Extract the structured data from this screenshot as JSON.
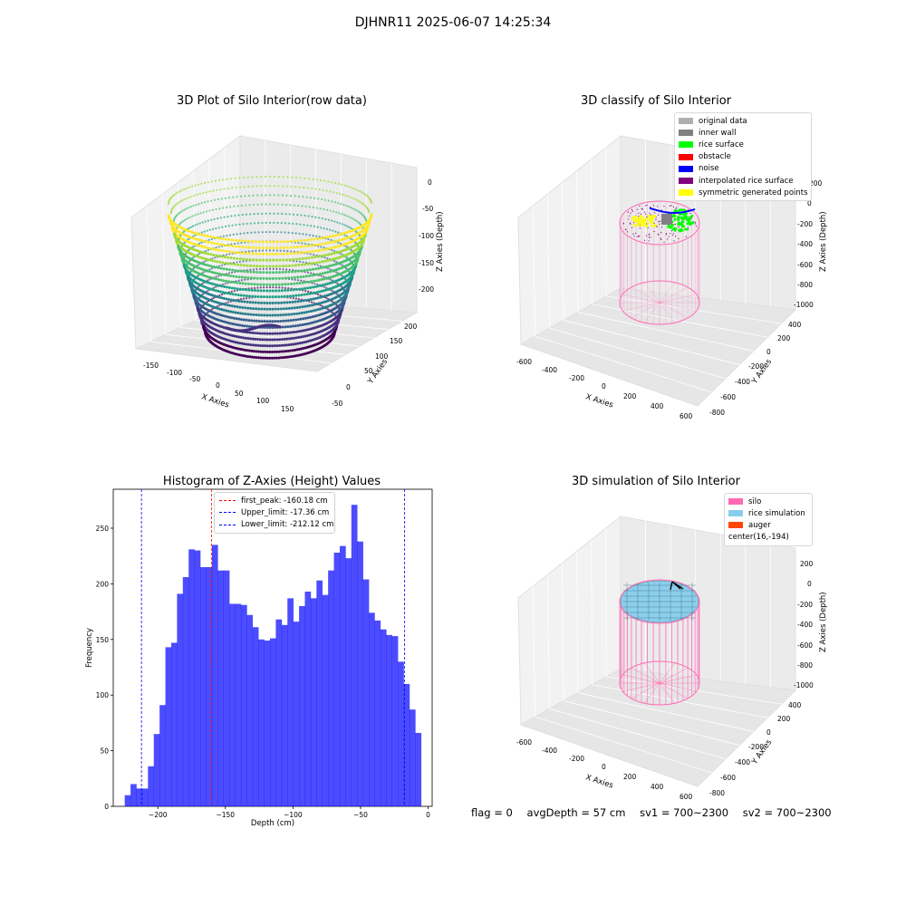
{
  "suptitle": "DJHNR11 2025-06-07 14:25:34",
  "chart_data": [
    {
      "type": "scatter3d",
      "title": "3D Plot of Silo Interior(row data)",
      "xlabel": "X Axies",
      "ylabel": "Y Axies",
      "zlabel": "Z Axies (Depth)",
      "xticks": [
        "-150",
        "-100",
        "-50",
        "0",
        "50",
        "100",
        "150"
      ],
      "yticks": [
        "-50",
        "0",
        "50",
        "100",
        "150",
        "200"
      ],
      "zticks": [
        "0",
        "-50",
        "-100",
        "-150",
        "-200"
      ],
      "zlim": [
        -230,
        0
      ],
      "colormap": "viridis"
    },
    {
      "type": "scatter3d",
      "title": "3D classify of Silo Interior",
      "xlabel": "X Axies",
      "ylabel": "Y Axies",
      "zlabel": "Z Axies (Depth)",
      "xticks": [
        "-600",
        "-400",
        "-200",
        "0",
        "200",
        "400",
        "600"
      ],
      "yticks": [
        "-800",
        "-600",
        "-400",
        "-200",
        "0",
        "200",
        "400"
      ],
      "zticks": [
        "200",
        "0",
        "-200",
        "-400",
        "-600",
        "-800",
        "-1000"
      ],
      "legend": [
        {
          "label": "original data",
          "color": "#b0b0b0"
        },
        {
          "label": "inner wall",
          "color": "#808080"
        },
        {
          "label": "rice surface",
          "color": "#00ff00"
        },
        {
          "label": "obstacle",
          "color": "#ff0000"
        },
        {
          "label": "noise",
          "color": "#0000ff"
        },
        {
          "label": "interpolated rice surface",
          "color": "#800080"
        },
        {
          "label": "symmetric generated points",
          "color": "#ffff00"
        }
      ]
    },
    {
      "type": "bar",
      "title": "Histogram of Z-Axies (Height) Values",
      "xlabel": "Depth (cm)",
      "ylabel": "Frequency",
      "xlim": [
        -233,
        3
      ],
      "ylim": [
        0,
        285
      ],
      "xticks": [
        -200,
        -150,
        -100,
        -50,
        0
      ],
      "yticks": [
        0,
        50,
        100,
        150,
        200,
        250
      ],
      "bin_width": 4.3,
      "bin_start": -224.5,
      "values": [
        10,
        20,
        16,
        16,
        36,
        65,
        91,
        143,
        147,
        191,
        206,
        231,
        230,
        215,
        215,
        235,
        212,
        212,
        182,
        182,
        181,
        172,
        161,
        150,
        149,
        151,
        168,
        163,
        187,
        166,
        180,
        193,
        187,
        203,
        190,
        212,
        228,
        234,
        223,
        271,
        238,
        204,
        174,
        167,
        159,
        154,
        153,
        130,
        110,
        87,
        66
      ],
      "bar_color": "#0000ff",
      "lines": [
        {
          "label": "first_peak: -160.18 cm",
          "x": -160.18,
          "color": "#ff0000"
        },
        {
          "label": "Upper_limit: -17.36 cm",
          "x": -17.36,
          "color": "#0000ff"
        },
        {
          "label": "Lower_limit: -212.12 cm",
          "x": -212.12,
          "color": "#0000ff"
        }
      ]
    },
    {
      "type": "surface3d",
      "title": "3D simulation of Silo Interior",
      "xlabel": "X Axies",
      "ylabel": "Y Axies",
      "zlabel": "Z Axies (Depth)",
      "xticks": [
        "-600",
        "-400",
        "-200",
        "0",
        "200",
        "400",
        "600"
      ],
      "yticks": [
        "-800",
        "-600",
        "-400",
        "-200",
        "0",
        "200",
        "400"
      ],
      "zticks": [
        "200",
        "0",
        "-200",
        "-400",
        "-600",
        "-800",
        "-1000"
      ],
      "legend": [
        {
          "label": "silo",
          "color": "#ff69b4"
        },
        {
          "label": "rice simulation",
          "color": "#87ceeb"
        },
        {
          "label": "auger",
          "color": "#ff4500"
        },
        {
          "label": "center(16,-194)",
          "color": ""
        }
      ]
    }
  ],
  "status": {
    "flag": "flag = 0",
    "avg": "avgDepth = 57 cm",
    "sv1": "sv1 = 700~2300",
    "sv2": "sv2 = 700~2300"
  }
}
